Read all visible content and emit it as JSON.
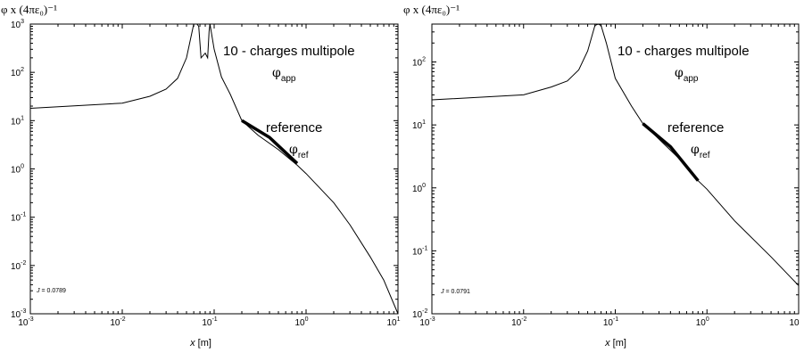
{
  "chart_data": [
    {
      "type": "line",
      "ylabel": "φ x (4πε₀)⁻¹",
      "xlabel_italic": "x",
      "xlabel_unit": " [m]",
      "x_scale": "log",
      "y_scale": "log",
      "xlim": [
        0.001,
        10
      ],
      "ylim": [
        0.001,
        1000
      ],
      "x_ticks": [
        {
          "base": "10",
          "exp": "-3",
          "value": 0.001
        },
        {
          "base": "10",
          "exp": "-2",
          "value": 0.01
        },
        {
          "base": "10",
          "exp": "-1",
          "value": 0.1
        },
        {
          "base": "10",
          "exp": "0",
          "value": 1
        },
        {
          "base": "10",
          "exp": "1",
          "value": 10
        }
      ],
      "y_ticks": [
        {
          "base": "10",
          "exp": "-3",
          "value": 0.001
        },
        {
          "base": "10",
          "exp": "-2",
          "value": 0.01
        },
        {
          "base": "10",
          "exp": "-1",
          "value": 0.1
        },
        {
          "base": "10",
          "exp": "0",
          "value": 1
        },
        {
          "base": "10",
          "exp": "1",
          "value": 10
        },
        {
          "base": "10",
          "exp": "2",
          "value": 100
        },
        {
          "base": "10",
          "exp": "3",
          "value": 1000
        }
      ],
      "annotation_title": "10 - charges multipole",
      "approx_symbol": "φ",
      "approx_sub": "app",
      "reference_label": "reference",
      "ref_symbol": "φ",
      "ref_sub": "ref",
      "j_label": "J",
      "j_value": " = 0.0789",
      "series": [
        {
          "role": "approximation",
          "points": [
            [
              0.001,
              18
            ],
            [
              0.01,
              23
            ],
            [
              0.02,
              32
            ],
            [
              0.03,
              45
            ],
            [
              0.04,
              75
            ],
            [
              0.05,
              200
            ],
            [
              0.06,
              1000
            ],
            [
              0.065,
              2000
            ],
            [
              0.068,
              900
            ],
            [
              0.072,
              200
            ],
            [
              0.08,
              250
            ],
            [
              0.085,
              200
            ],
            [
              0.088,
              700
            ],
            [
              0.09,
              1000
            ],
            [
              0.1,
              300
            ],
            [
              0.12,
              80
            ],
            [
              0.15,
              35
            ],
            [
              0.2,
              10
            ],
            [
              0.3,
              5
            ],
            [
              0.5,
              2.5
            ],
            [
              0.8,
              1.2
            ],
            [
              1,
              0.8
            ],
            [
              2,
              0.2
            ],
            [
              3,
              0.07
            ],
            [
              5,
              0.015
            ],
            [
              7,
              0.005
            ],
            [
              10,
              0.001
            ]
          ]
        },
        {
          "role": "reference",
          "points": [
            [
              0.2,
              10
            ],
            [
              0.4,
              4.5
            ],
            [
              0.8,
              1.3
            ]
          ]
        }
      ]
    },
    {
      "type": "line",
      "ylabel": "φ x (4πε₀)⁻¹",
      "xlabel_italic": "x",
      "xlabel_unit": " [m]",
      "x_scale": "log",
      "y_scale": "log",
      "xlim": [
        0.001,
        10
      ],
      "ylim": [
        0.01,
        400
      ],
      "x_ticks": [
        {
          "base": "10",
          "exp": "-3",
          "value": 0.001
        },
        {
          "base": "10",
          "exp": "-2",
          "value": 0.01
        },
        {
          "base": "10",
          "exp": "-1",
          "value": 0.1
        },
        {
          "base": "10",
          "exp": "0",
          "value": 1
        },
        {
          "base": "10",
          "exp": "",
          "value": 10
        }
      ],
      "y_ticks": [
        {
          "base": "10",
          "exp": "-2",
          "value": 0.01
        },
        {
          "base": "10",
          "exp": "-1",
          "value": 0.1
        },
        {
          "base": "10",
          "exp": "0",
          "value": 1
        },
        {
          "base": "10",
          "exp": "1",
          "value": 10
        },
        {
          "base": "10",
          "exp": "2",
          "value": 100
        }
      ],
      "annotation_title": "10 - charges multipole",
      "approx_symbol": "φ",
      "approx_sub": "app",
      "reference_label": "reference",
      "ref_symbol": "φ",
      "ref_sub": "ref",
      "j_label": "J",
      "j_value": " = 0.0791",
      "series": [
        {
          "role": "approximation",
          "points": [
            [
              0.001,
              25
            ],
            [
              0.01,
              30
            ],
            [
              0.02,
              40
            ],
            [
              0.03,
              50
            ],
            [
              0.04,
              75
            ],
            [
              0.05,
              150
            ],
            [
              0.06,
              380
            ],
            [
              0.065,
              400
            ],
            [
              0.07,
              380
            ],
            [
              0.08,
              200
            ],
            [
              0.1,
              55
            ],
            [
              0.15,
              20
            ],
            [
              0.2,
              10.5
            ],
            [
              0.5,
              2.9
            ],
            [
              0.8,
              1.3
            ],
            [
              1,
              0.95
            ],
            [
              2,
              0.3
            ],
            [
              5,
              0.08
            ],
            [
              10,
              0.028
            ]
          ]
        },
        {
          "role": "reference",
          "points": [
            [
              0.2,
              10.5
            ],
            [
              0.4,
              4.5
            ],
            [
              0.8,
              1.3
            ]
          ]
        }
      ]
    }
  ]
}
